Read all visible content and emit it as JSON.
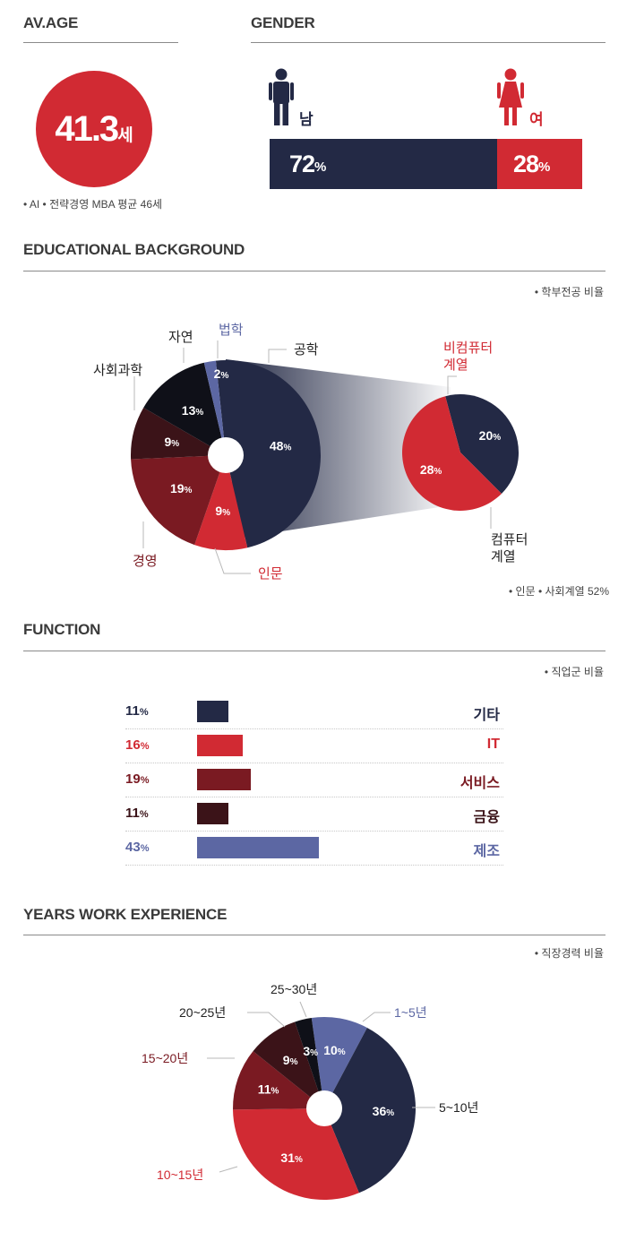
{
  "colors": {
    "navy": "#232945",
    "red": "#d12a33",
    "maroon": "#7a1a22",
    "darkbrown": "#3b1318",
    "periwinkle": "#5c67a3",
    "black": "#0f1018"
  },
  "age": {
    "title": "AV.AGE",
    "value": "41.3",
    "unit": "세",
    "note": "• AI • 전략경영 MBA 평균 46세"
  },
  "gender": {
    "title": "GENDER",
    "male_label": "남",
    "female_label": "여",
    "male_icon": "male-person-icon",
    "female_icon": "female-person-icon",
    "male_pct": "72",
    "female_pct": "28",
    "pct_sign": "%"
  },
  "education": {
    "title": "EDUCATIONAL BACKGROUND",
    "note_top": "• 학부전공 비율",
    "note_bottom": "• 인문 • 사회계열 52%"
  },
  "function": {
    "title": "FUNCTION",
    "note": "• 직업군 비율",
    "rows": [
      {
        "pct": "11",
        "name": "기타",
        "value": 11,
        "color": "#232945",
        "text_color": "#232945"
      },
      {
        "pct": "16",
        "name": "IT",
        "value": 16,
        "color": "#d12a33",
        "text_color": "#d12a33"
      },
      {
        "pct": "19",
        "name": "서비스",
        "value": 19,
        "color": "#7a1a22",
        "text_color": "#7a1a22"
      },
      {
        "pct": "11",
        "name": "금융",
        "value": 11,
        "color": "#3b1318",
        "text_color": "#3b1318"
      },
      {
        "pct": "43",
        "name": "제조",
        "value": 43,
        "color": "#5c67a3",
        "text_color": "#5c67a3"
      }
    ]
  },
  "experience": {
    "title": "YEARS WORK EXPERIENCE",
    "note": "• 직장경력 비율"
  },
  "chart_data": [
    {
      "type": "bar",
      "categories": [
        "남",
        "여"
      ],
      "values": [
        72,
        28
      ]
    },
    {
      "type": "pie",
      "labels": [
        "공학",
        "인문",
        "경영",
        "사회과학",
        "자연",
        "법학"
      ],
      "values": [
        48,
        9,
        19,
        9,
        13,
        2
      ],
      "colors": [
        "#232945",
        "#d12a33",
        "#7a1a22",
        "#3b1318",
        "#0f1018",
        "#5c67a3"
      ],
      "breakdown": {
        "parent": "공학",
        "labels": [
          "컴퓨터 계열",
          "비컴퓨터 계열"
        ],
        "values": [
          20,
          28
        ],
        "colors": [
          "#232945",
          "#d12a33"
        ]
      }
    },
    {
      "type": "bar",
      "categories": [
        "기타",
        "IT",
        "서비스",
        "금융",
        "제조"
      ],
      "values": [
        11,
        16,
        19,
        11,
        43
      ]
    },
    {
      "type": "pie",
      "labels": [
        "1~5년",
        "5~10년",
        "10~15년",
        "15~20년",
        "20~25년",
        "25~30년"
      ],
      "values": [
        10,
        36,
        31,
        11,
        9,
        3
      ],
      "colors": [
        "#5c67a3",
        "#232945",
        "#d12a33",
        "#7a1a22",
        "#3b1318",
        "#0f1018"
      ]
    }
  ]
}
